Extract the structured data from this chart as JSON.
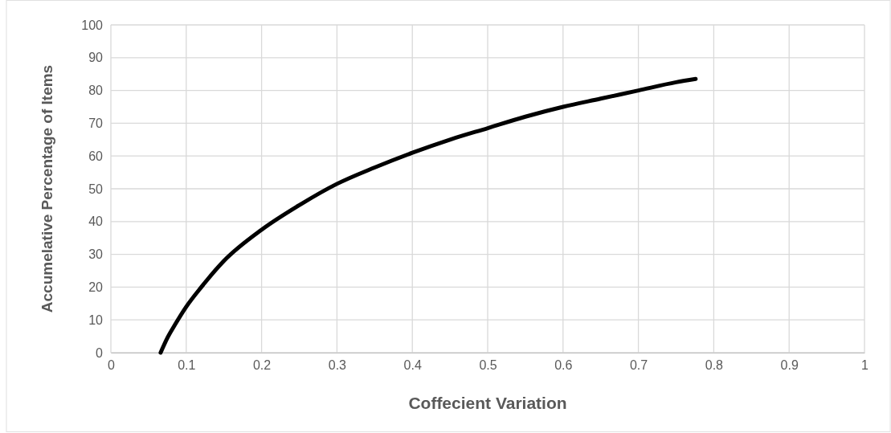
{
  "chart_data": {
    "type": "line",
    "xlabel": "Coffecient Variation",
    "ylabel": "Accumelative Percentage of Items",
    "series": [
      {
        "color": "#000000",
        "x": [
          0.066,
          0.075,
          0.085,
          0.1,
          0.12,
          0.15,
          0.2,
          0.25,
          0.3,
          0.35,
          0.4,
          0.45,
          0.5,
          0.55,
          0.6,
          0.65,
          0.7,
          0.75,
          0.776
        ],
        "values": [
          0,
          4.5,
          8.5,
          14,
          20,
          28,
          37.5,
          45,
          51.5,
          56.5,
          61,
          65,
          68.5,
          72,
          75,
          77.5,
          80,
          82.5,
          83.5
        ]
      }
    ],
    "xlim": [
      0,
      1
    ],
    "xticks": [
      0,
      0.1,
      0.2,
      0.3,
      0.4,
      0.5,
      0.6,
      0.7,
      0.8,
      0.9,
      1
    ],
    "ylim": [
      0,
      100
    ],
    "yticks": [
      0,
      10,
      20,
      30,
      40,
      50,
      60,
      70,
      80,
      90,
      100
    ],
    "grid": true,
    "marker": "none",
    "line_style": "solid"
  }
}
